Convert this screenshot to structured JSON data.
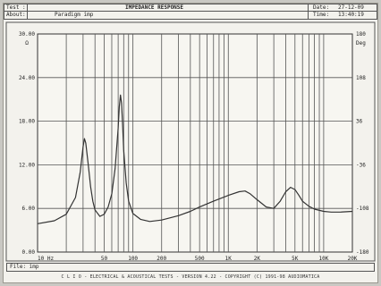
{
  "header": {
    "test_label": "Test :",
    "test_value": "IMPEDANCE RESPONSE",
    "about_label": "About:",
    "about_value": "Paradigm imp",
    "date_label": "Date:",
    "date_value": "27-12-09",
    "time_label": "Time:",
    "time_value": "13:40:19"
  },
  "footer": {
    "file_label": "File: imp",
    "banner": "C L I O  -  ELECTRICAL & ACOUSTICAL TESTS  -  VERSION 4.22  -  COPYRIGHT (C) 1991-98 AUDIOMATICA"
  },
  "chart_data": {
    "type": "line",
    "title": "",
    "xlabel": "",
    "ylabel": "",
    "x_scale": "log",
    "xlim": [
      10,
      20000
    ],
    "ylim": [
      0,
      30
    ],
    "y2lim": [
      -180,
      180
    ],
    "grid": true,
    "x_ticks": [
      {
        "v": 10,
        "label": "10 Hz"
      },
      {
        "v": 20,
        "label": ""
      },
      {
        "v": 30,
        "label": ""
      },
      {
        "v": 40,
        "label": ""
      },
      {
        "v": 50,
        "label": "50"
      },
      {
        "v": 60,
        "label": ""
      },
      {
        "v": 70,
        "label": ""
      },
      {
        "v": 80,
        "label": ""
      },
      {
        "v": 90,
        "label": ""
      },
      {
        "v": 100,
        "label": "100"
      },
      {
        "v": 200,
        "label": "200"
      },
      {
        "v": 300,
        "label": ""
      },
      {
        "v": 400,
        "label": ""
      },
      {
        "v": 500,
        "label": "500"
      },
      {
        "v": 600,
        "label": ""
      },
      {
        "v": 700,
        "label": ""
      },
      {
        "v": 800,
        "label": ""
      },
      {
        "v": 900,
        "label": ""
      },
      {
        "v": 1000,
        "label": "1K"
      },
      {
        "v": 2000,
        "label": "2K"
      },
      {
        "v": 3000,
        "label": ""
      },
      {
        "v": 4000,
        "label": ""
      },
      {
        "v": 5000,
        "label": "5K"
      },
      {
        "v": 6000,
        "label": ""
      },
      {
        "v": 7000,
        "label": ""
      },
      {
        "v": 8000,
        "label": ""
      },
      {
        "v": 9000,
        "label": ""
      },
      {
        "v": 10000,
        "label": "10K"
      },
      {
        "v": 20000,
        "label": "20K"
      }
    ],
    "y_ticks": [
      {
        "v": 30,
        "label": "30.00"
      },
      {
        "v": 24,
        "label": "24.00"
      },
      {
        "v": 18,
        "label": "18.00"
      },
      {
        "v": 12,
        "label": "12.00"
      },
      {
        "v": 6,
        "label": "6.00"
      },
      {
        "v": 0,
        "label": "0.00"
      }
    ],
    "y_unit": "Ω",
    "y2_ticks": [
      {
        "v": 180,
        "label": "180"
      },
      {
        "v": 108,
        "label": "108"
      },
      {
        "v": 36,
        "label": "36"
      },
      {
        "v": -36,
        "label": "-36"
      },
      {
        "v": -108,
        "label": "-108"
      },
      {
        "v": -180,
        "label": "-180"
      }
    ],
    "y2_unit": "Deg",
    "series": [
      {
        "color": "#333333",
        "x": [
          10,
          15,
          20,
          25,
          28,
          30,
          31,
          32,
          34,
          36,
          38,
          40,
          45,
          50,
          55,
          60,
          65,
          70,
          72,
          74,
          76,
          78,
          80,
          85,
          90,
          100,
          120,
          150,
          200,
          300,
          400,
          500,
          700,
          1000,
          1300,
          1500,
          1700,
          2000,
          2500,
          3000,
          3500,
          4000,
          4500,
          5000,
          5500,
          6000,
          7000,
          8000,
          10000,
          12000,
          15000,
          20000
        ],
        "y": [
          3.9,
          4.3,
          5.2,
          7.5,
          11,
          14.5,
          15.6,
          15.0,
          12.0,
          9.0,
          7.0,
          5.8,
          4.9,
          5.2,
          6.2,
          8.0,
          11.5,
          17.0,
          20.0,
          21.6,
          20.5,
          17.5,
          14.0,
          9.5,
          7.0,
          5.3,
          4.5,
          4.2,
          4.4,
          5.0,
          5.6,
          6.2,
          7.0,
          7.8,
          8.3,
          8.4,
          8.0,
          7.2,
          6.2,
          6.0,
          7.0,
          8.3,
          8.9,
          8.6,
          7.8,
          7.0,
          6.3,
          5.9,
          5.6,
          5.5,
          5.5,
          5.6
        ]
      }
    ]
  }
}
